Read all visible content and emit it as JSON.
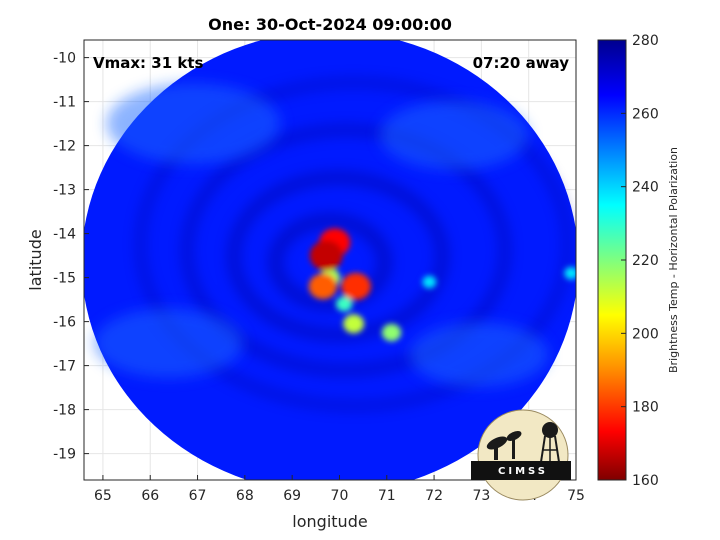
{
  "chart_data": {
    "type": "heatmap",
    "title": "One: 30-Oct-2024 09:00:00",
    "xlabel": "longitude",
    "ylabel": "latitude",
    "xlim": [
      64.6,
      75.0
    ],
    "ylim": [
      -19.6,
      -9.6
    ],
    "xticks": [
      65,
      66,
      67,
      68,
      69,
      70,
      71,
      72,
      73,
      74,
      75
    ],
    "yticks": [
      -10,
      -11,
      -12,
      -13,
      -14,
      -15,
      -16,
      -17,
      -18,
      -19
    ],
    "grid": true,
    "annotations": {
      "vmax": "Vmax: 31 kts",
      "time_away": "07:20 away"
    },
    "swath": {
      "center_lon": 69.8,
      "center_lat": -14.65,
      "radius_deg": 5.25
    },
    "colorbar": {
      "label": "Brightness Temp - Horizontal Polarization",
      "min": 160,
      "max": 280,
      "ticks": [
        280,
        260,
        240,
        220,
        200,
        180,
        160
      ],
      "colormap": [
        "#7f0000",
        "#ff0000",
        "#ff8c00",
        "#ffff00",
        "#7fff7f",
        "#00ffff",
        "#0080ff",
        "#0000ff",
        "#00008f"
      ]
    },
    "values": {
      "background_brightness_temp": 262,
      "cold_features": [
        {
          "lon": 69.72,
          "lat": -14.5,
          "brightness_temp": 168
        },
        {
          "lon": 69.9,
          "lat": -14.2,
          "brightness_temp": 175
        },
        {
          "lon": 69.65,
          "lat": -15.2,
          "brightness_temp": 185
        },
        {
          "lon": 70.35,
          "lat": -15.2,
          "brightness_temp": 180
        },
        {
          "lon": 69.8,
          "lat": -15.0,
          "brightness_temp": 215
        },
        {
          "lon": 70.1,
          "lat": -15.6,
          "brightness_temp": 228
        },
        {
          "lon": 70.3,
          "lat": -16.05,
          "brightness_temp": 212
        },
        {
          "lon": 71.1,
          "lat": -16.25,
          "brightness_temp": 218
        },
        {
          "lon": 71.9,
          "lat": -15.1,
          "brightness_temp": 238
        },
        {
          "lon": 74.9,
          "lat": -14.9,
          "brightness_temp": 238
        }
      ]
    }
  },
  "logo": {
    "text": "CIMSS"
  }
}
